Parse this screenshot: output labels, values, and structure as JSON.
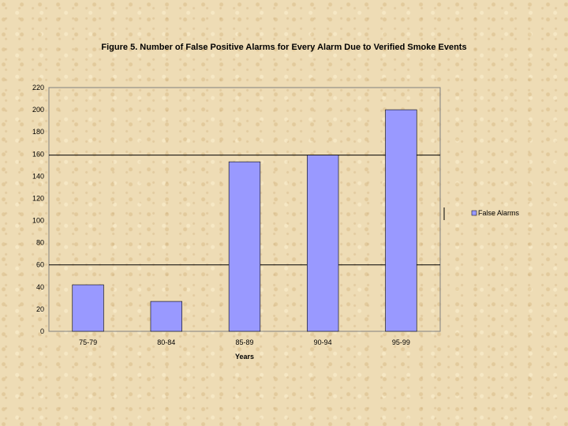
{
  "chart_data": {
    "type": "bar",
    "title": "Figure 5. Number of False Positive Alarms for Every Alarm Due to Verified Smoke Events",
    "xlabel": "Years",
    "ylabel": "",
    "categories": [
      "75-79",
      "80-84",
      "85-89",
      "90-94",
      "95-99"
    ],
    "series": [
      {
        "name": "False Alarms",
        "values": [
          42,
          27,
          153,
          159,
          200
        ],
        "color": "#9999ff"
      }
    ],
    "ylim": [
      0,
      220
    ],
    "yticks": [
      0,
      20,
      40,
      60,
      80,
      100,
      120,
      140,
      160,
      180,
      200,
      220
    ],
    "reference_lines": [
      60,
      159
    ],
    "grid": false,
    "legend_position": "right"
  }
}
